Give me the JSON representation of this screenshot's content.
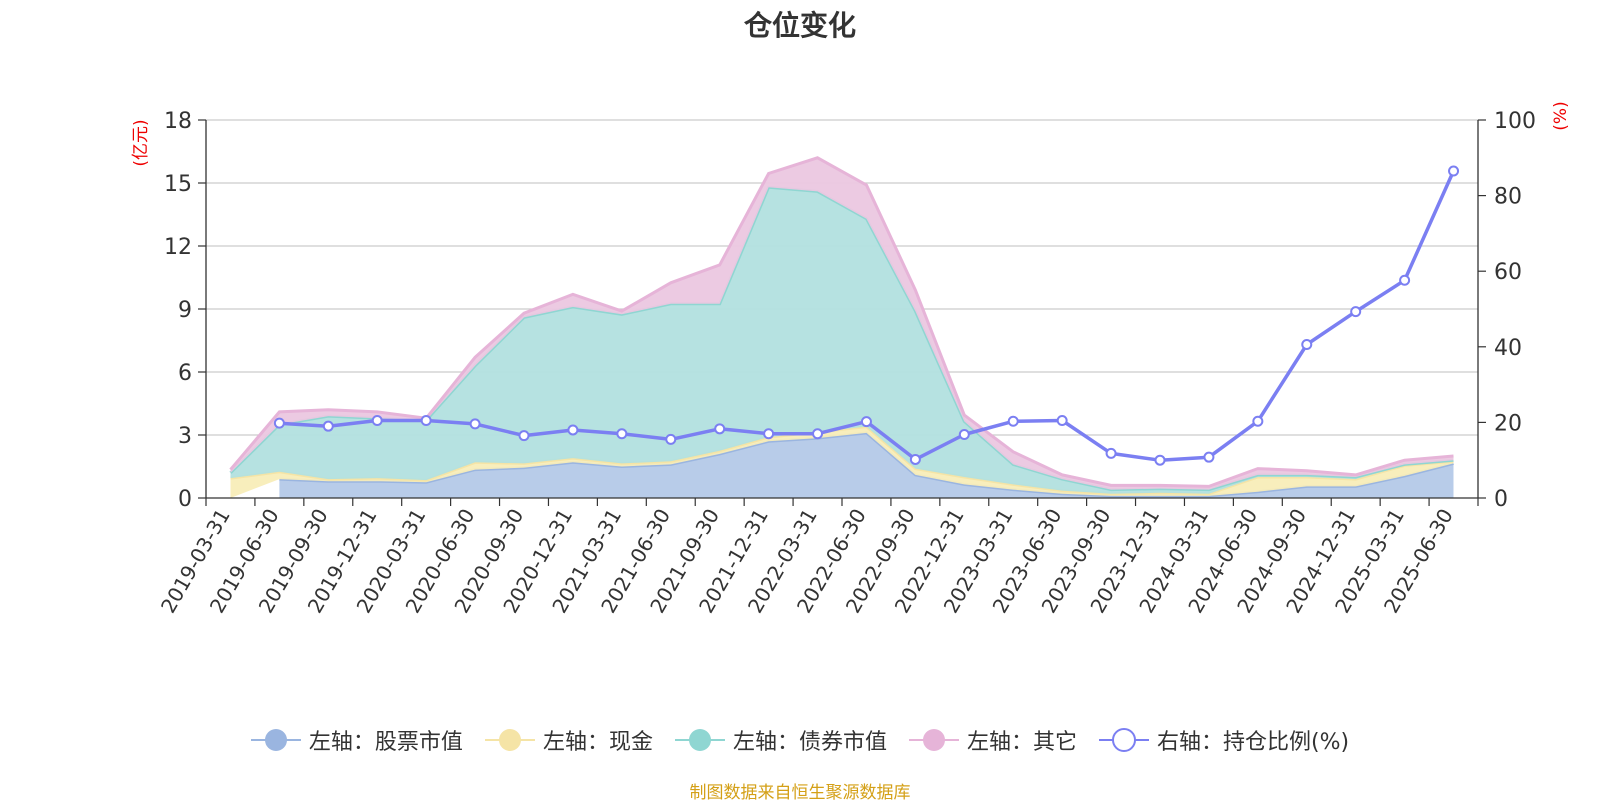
{
  "chart_data": {
    "type": "area",
    "title": "仓位变化",
    "left_axis_unit": "(亿元)",
    "right_axis_unit": "(%)",
    "categories": [
      "2019-03-31",
      "2019-06-30",
      "2019-09-30",
      "2019-12-31",
      "2020-03-31",
      "2020-06-30",
      "2020-09-30",
      "2020-12-31",
      "2021-03-31",
      "2021-06-30",
      "2021-09-30",
      "2021-12-31",
      "2022-03-31",
      "2022-06-30",
      "2022-09-30",
      "2022-12-31",
      "2023-03-31",
      "2023-06-30",
      "2023-09-30",
      "2023-12-31",
      "2024-03-31",
      "2024-06-30",
      "2024-09-30",
      "2024-12-31",
      "2025-03-31",
      "2025-06-30"
    ],
    "left_ylim": [
      0,
      18
    ],
    "left_yticks": [
      0,
      3,
      6,
      9,
      12,
      15,
      18
    ],
    "right_ylim": [
      0,
      100
    ],
    "right_yticks": [
      0,
      20,
      40,
      60,
      80,
      100
    ],
    "grid": true,
    "legend_position": "bottom",
    "series": [
      {
        "name": "左轴：股票市值",
        "axis": "left",
        "stack": "total",
        "color": "#9ab5e0",
        "fill": "#b4c9e8",
        "values": [
          null,
          0.9,
          0.8,
          0.8,
          0.75,
          1.35,
          1.45,
          1.7,
          1.5,
          1.6,
          2.1,
          2.7,
          2.85,
          3.1,
          1.1,
          0.65,
          0.4,
          0.2,
          0.1,
          0.1,
          0.1,
          0.3,
          0.55,
          0.55,
          1.05,
          1.65
        ]
      },
      {
        "name": "左轴：现金",
        "axis": "left",
        "stack": "total",
        "color": "#f5e4a6",
        "fill": "#f8edb8",
        "values": [
          0.95,
          0.35,
          0.1,
          0.15,
          0.1,
          0.35,
          0.2,
          0.2,
          0.15,
          0.15,
          0.15,
          0.2,
          0.3,
          0.3,
          0.3,
          0.35,
          0.25,
          0.15,
          0.1,
          0.15,
          0.1,
          0.7,
          0.45,
          0.35,
          0.5,
          0.1
        ]
      },
      {
        "name": "左轴：债券市值",
        "axis": "left",
        "stack": "total",
        "color": "#8fd6d2",
        "fill": "#b2e0df",
        "values": [
          0.25,
          2.25,
          3.0,
          2.85,
          2.85,
          4.6,
          6.95,
          7.2,
          7.1,
          7.5,
          7.0,
          11.9,
          11.45,
          9.9,
          7.5,
          2.65,
          0.95,
          0.55,
          0.2,
          0.2,
          0.2,
          0.1,
          0.1,
          0.1,
          0.05,
          0.05
        ]
      },
      {
        "name": "左轴：其它",
        "axis": "left",
        "stack": "total",
        "color": "#e6b4d8",
        "fill": "#ebc7e0",
        "values": [
          0.15,
          0.6,
          0.3,
          0.3,
          0.1,
          0.4,
          0.2,
          0.6,
          0.15,
          1.0,
          1.85,
          0.65,
          1.6,
          1.6,
          1.0,
          0.3,
          0.6,
          0.2,
          0.2,
          0.15,
          0.15,
          0.3,
          0.2,
          0.1,
          0.2,
          0.2
        ]
      },
      {
        "name": "右轴：持仓比例(%)",
        "axis": "right",
        "type": "line",
        "color": "#7b7ff2",
        "values": [
          null,
          19.8,
          19.0,
          20.5,
          20.5,
          19.6,
          16.5,
          18.0,
          17.0,
          15.5,
          18.3,
          17.0,
          17.0,
          20.2,
          10.2,
          16.8,
          20.3,
          20.5,
          11.8,
          10.0,
          10.8,
          20.3,
          40.6,
          49.3,
          57.6,
          86.5
        ]
      }
    ],
    "source_note": "制图数据来自恒生聚源数据库"
  }
}
